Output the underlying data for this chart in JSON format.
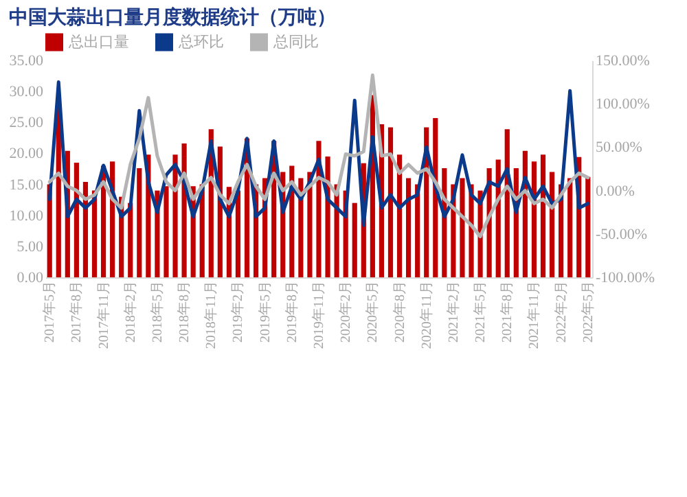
{
  "chart_data": {
    "type": "bar",
    "title": "中国大蒜出口量月度数据统计（万吨）",
    "categories": [
      "2017年5月",
      null,
      null,
      "2017年8月",
      null,
      null,
      "2017年11月",
      null,
      null,
      "2018年2月",
      null,
      null,
      "2018年5月",
      null,
      null,
      "2018年8月",
      null,
      null,
      "2018年11月",
      null,
      null,
      "2019年2月",
      null,
      null,
      "2019年5月",
      null,
      null,
      "2019年8月",
      null,
      null,
      "2019年11月",
      null,
      null,
      "2020年2月",
      null,
      null,
      "2020年5月",
      null,
      null,
      "2020年8月",
      null,
      null,
      "2020年11月",
      null,
      null,
      "2021年2月",
      null,
      null,
      "2021年5月",
      null,
      null,
      "2021年8月",
      null,
      null,
      "2021年11月",
      null,
      null,
      "2022年2月",
      null,
      null,
      "2022年5月"
    ],
    "series": [
      {
        "name": "总出口量",
        "color": "#c00000",
        "values": [
          15,
          28,
          20.4,
          18.5,
          15.4,
          14,
          18,
          18.7,
          13,
          12,
          17.6,
          19.8,
          14,
          14.7,
          19.8,
          21.6,
          14.7,
          15,
          23.9,
          21.1,
          14.6,
          14,
          22.4,
          15,
          16,
          22,
          17,
          18,
          16,
          17,
          22,
          19.5,
          15,
          14,
          12,
          18.4,
          29.4,
          24.7,
          24.2,
          19.8,
          16,
          15,
          24.2,
          25.7,
          17.6,
          15,
          16,
          15,
          14,
          17.6,
          19,
          23.9,
          17.6,
          20.4,
          18.7,
          19.8,
          17,
          15,
          16,
          19.4,
          16.2
        ]
      },
      {
        "name": "总环比",
        "type": "line",
        "axis": "y2",
        "color": "#0b3a8a",
        "values": [
          -10,
          125,
          -30,
          -10,
          -20,
          -10,
          29,
          0,
          -30,
          -20,
          92,
          10,
          -25,
          18,
          30,
          10,
          -30,
          0,
          57,
          -10,
          -30,
          0,
          60,
          -30,
          -20,
          57,
          -25,
          5,
          -10,
          10,
          36,
          -10,
          -20,
          -30,
          104,
          -40,
          62,
          -20,
          -5,
          -20,
          -10,
          -5,
          50,
          5,
          -30,
          -10,
          41,
          -5,
          -15,
          10,
          5,
          25,
          -25,
          15,
          -10,
          5,
          -15,
          -10,
          115,
          -20,
          -15
        ]
      },
      {
        "name": "总同比",
        "type": "line",
        "axis": "y2",
        "color": "#b4b4b4",
        "values": [
          10,
          20,
          5,
          0,
          -10,
          -5,
          10,
          -10,
          -20,
          30,
          60,
          107,
          40,
          10,
          0,
          20,
          -10,
          5,
          15,
          -5,
          -15,
          10,
          30,
          5,
          -10,
          20,
          0,
          10,
          -5,
          5,
          15,
          10,
          -5,
          42,
          40,
          45,
          133,
          40,
          42,
          20,
          30,
          20,
          25,
          10,
          -10,
          -20,
          -30,
          -40,
          -53,
          -30,
          -10,
          5,
          -10,
          0,
          -15,
          -10,
          -20,
          -5,
          10,
          20,
          15
        ]
      }
    ],
    "ylim": [
      0,
      35
    ],
    "yticks": [
      {
        "value": 0,
        "label": "0.00"
      },
      {
        "value": 5,
        "label": "5.00"
      },
      {
        "value": 10,
        "label": "10.00"
      },
      {
        "value": 15,
        "label": "15.00"
      },
      {
        "value": 20,
        "label": "20.00"
      },
      {
        "value": 25,
        "label": "25.00"
      },
      {
        "value": 30,
        "label": "30.00"
      },
      {
        "value": 35,
        "label": "35.00"
      }
    ],
    "y2lim": [
      -100,
      150
    ],
    "y2ticks": [
      {
        "value": -100,
        "label": "-100.00%"
      },
      {
        "value": -50,
        "label": "-50.00%"
      },
      {
        "value": 0,
        "label": "0.00%"
      },
      {
        "value": 50,
        "label": "50.00%"
      },
      {
        "value": 100,
        "label": "100.00%"
      },
      {
        "value": 150,
        "label": "150.00%"
      }
    ],
    "legend": "top",
    "line_style": "solid",
    "marker": "none"
  }
}
